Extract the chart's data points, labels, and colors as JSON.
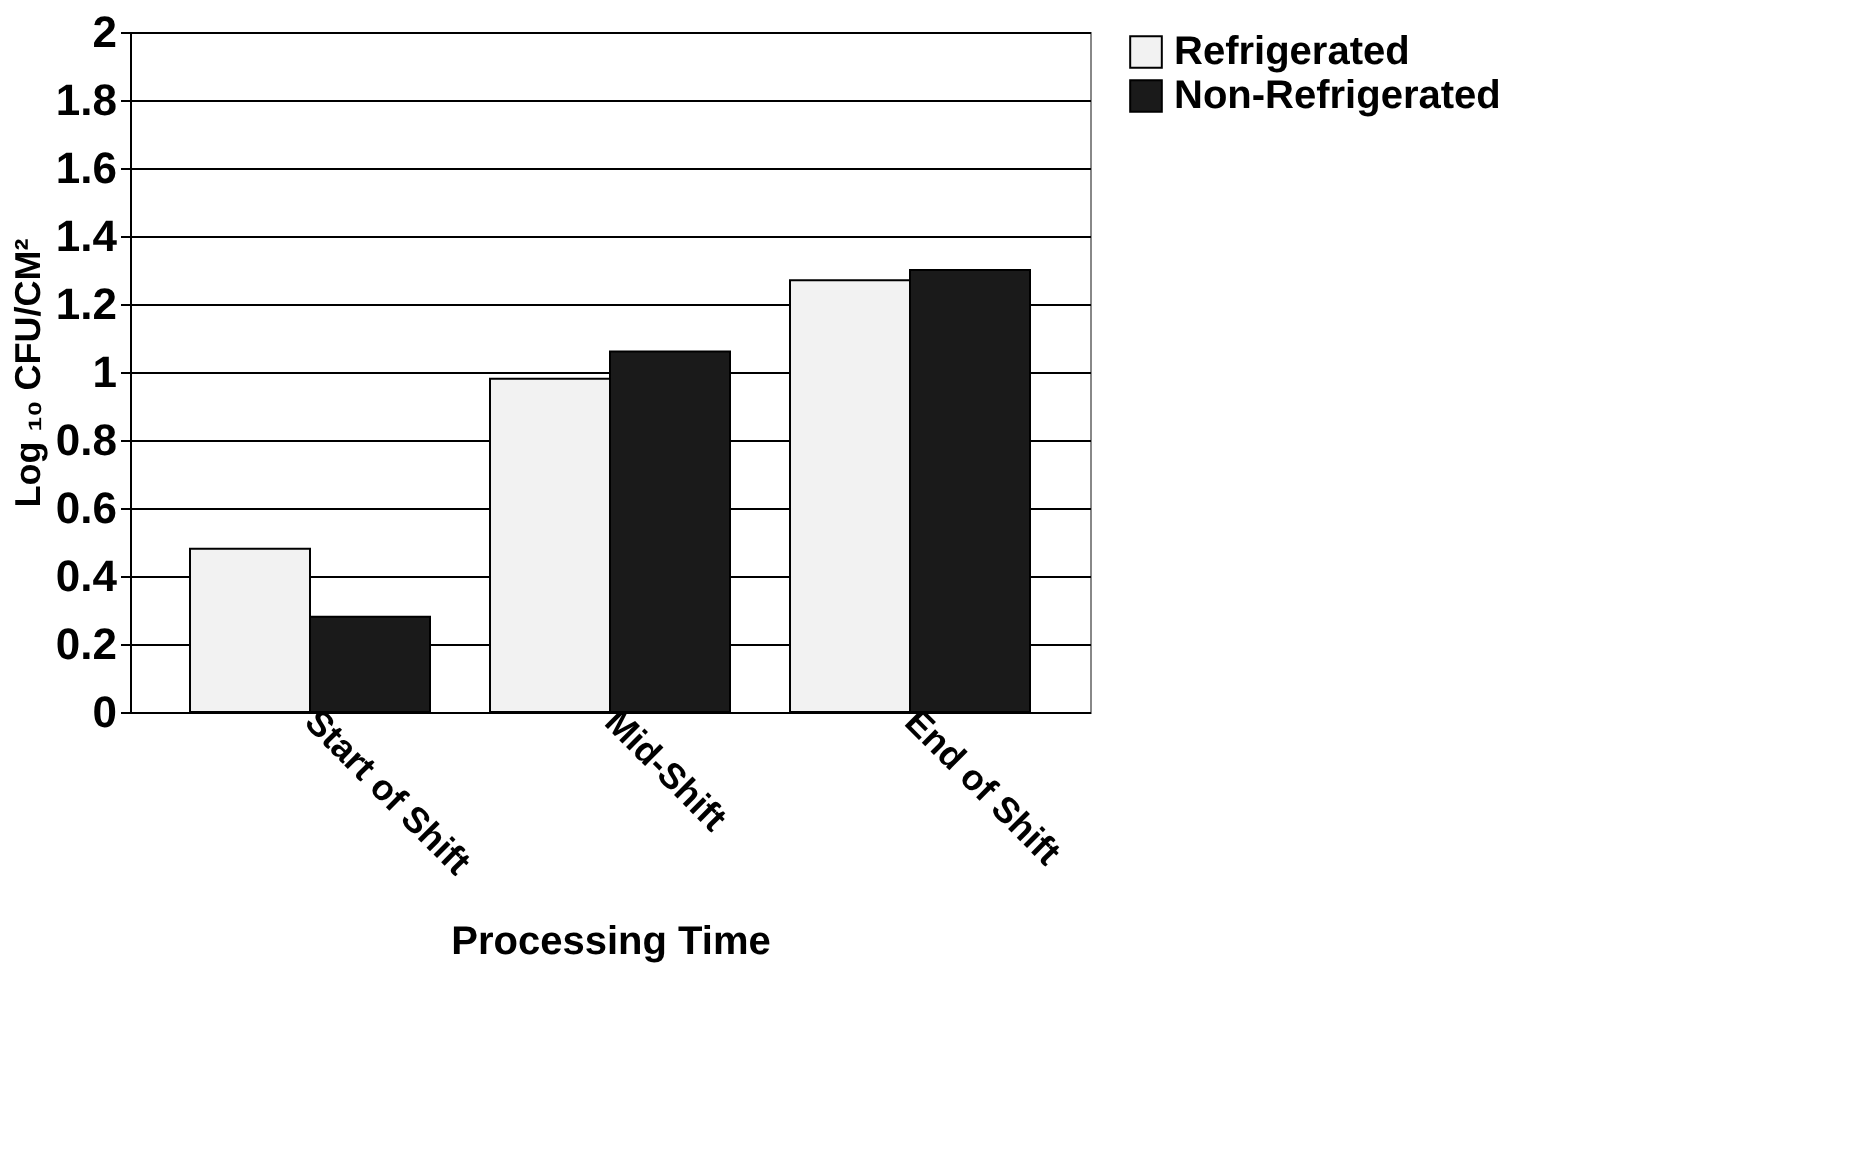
{
  "chart_data": {
    "type": "bar",
    "xlabel": "Processing Time",
    "ylabel": "Log ₁₀ CFU/CM²",
    "categories": [
      "Start of Shift",
      "Mid-Shift",
      "End of Shift"
    ],
    "series": [
      {
        "name": "Refrigerated",
        "color": "#f2f2f2",
        "values": [
          0.48,
          0.98,
          1.27
        ]
      },
      {
        "name": "Non-Refrigerated",
        "color": "#1a1a1a",
        "values": [
          0.28,
          1.06,
          1.3
        ]
      }
    ],
    "ylim": [
      0,
      2
    ],
    "yticks": [
      0,
      0.2,
      0.4,
      0.6,
      0.8,
      1,
      1.2,
      1.4,
      1.6,
      1.8,
      2
    ],
    "grid": "y",
    "legend": "top right"
  }
}
